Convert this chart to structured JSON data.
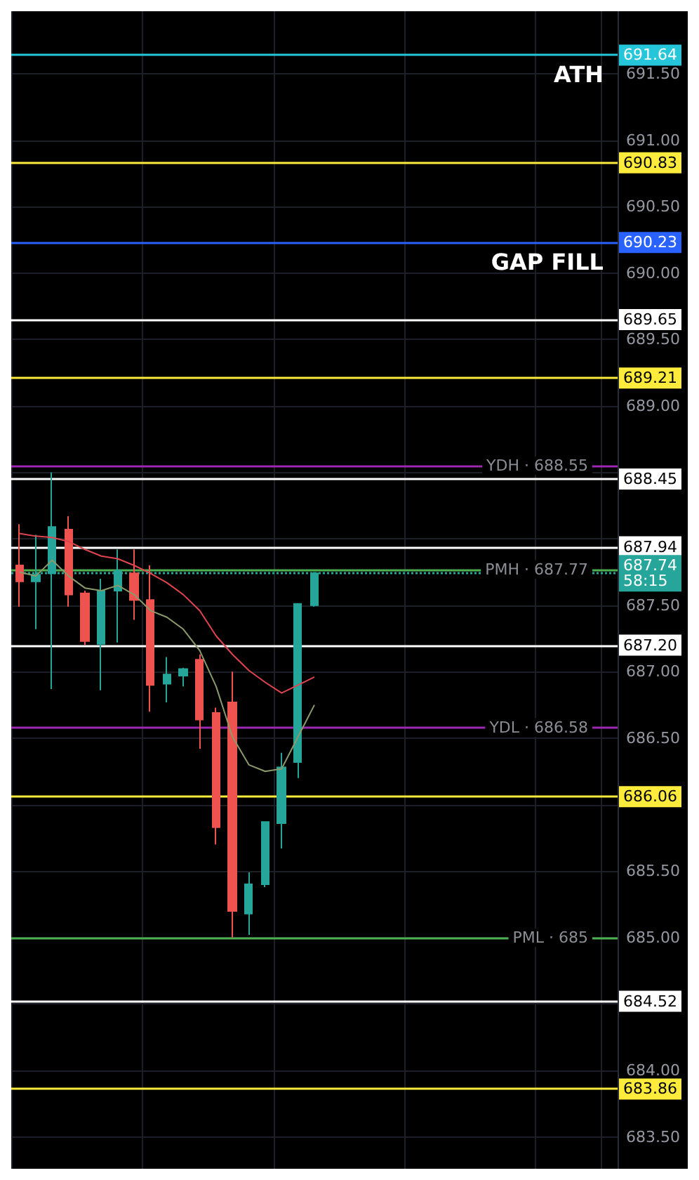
{
  "chart_data": {
    "type": "candlestick",
    "categories": [
      null,
      null,
      null,
      null,
      null,
      null,
      null,
      null,
      null,
      null,
      null,
      null,
      null,
      null,
      null,
      null,
      null,
      null,
      null,
      null,
      null,
      null,
      null,
      null,
      null,
      null,
      null,
      null,
      null,
      null,
      null,
      null,
      null,
      null,
      null,
      null,
      null
    ],
    "ohlc": [
      [
        687.8,
        688.11,
        687.49,
        687.68
      ],
      [
        687.68,
        688.03,
        687.32,
        687.73
      ],
      [
        687.74,
        688.5,
        686.87,
        688.09
      ],
      [
        688.07,
        688.17,
        687.49,
        687.58
      ],
      [
        687.59,
        687.61,
        687.2,
        687.23
      ],
      [
        687.21,
        687.7,
        686.86,
        687.61
      ],
      [
        687.61,
        687.92,
        687.22,
        687.76
      ],
      [
        687.74,
        687.92,
        687.39,
        687.54
      ],
      [
        687.54,
        687.8,
        686.7,
        686.9
      ],
      [
        686.91,
        687.11,
        686.77,
        686.98
      ],
      [
        686.97,
        687.03,
        686.89,
        687.02
      ],
      [
        687.09,
        687.13,
        686.42,
        686.64
      ],
      [
        686.69,
        686.73,
        685.7,
        685.83
      ],
      [
        686.77,
        687.0,
        685.0,
        685.2
      ],
      [
        685.18,
        685.49,
        685.02,
        685.4
      ],
      [
        685.4,
        685.87,
        685.38,
        685.87
      ],
      [
        685.86,
        686.39,
        685.67,
        686.28
      ],
      [
        686.32,
        687.51,
        686.2,
        687.51
      ],
      [
        687.5,
        687.75,
        687.49,
        687.74
      ],
      null,
      null,
      null,
      null,
      null,
      null,
      null,
      null,
      null,
      null,
      null,
      null,
      null,
      null,
      null,
      null,
      null,
      null
    ],
    "series": [
      {
        "type": "line",
        "color": "#e0454f",
        "values": [
          688.04,
          688.02,
          688.01,
          687.98,
          687.92,
          687.87,
          687.85,
          687.8,
          687.74,
          687.67,
          687.58,
          687.46,
          687.27,
          687.13,
          687.01,
          686.92,
          686.84,
          686.9,
          686.96,
          null,
          null,
          null,
          null,
          null,
          null,
          null,
          null,
          null,
          null,
          null,
          null,
          null,
          null,
          null,
          null,
          null,
          null
        ]
      },
      {
        "type": "line",
        "color": "#8a9a6a",
        "values": [
          687.75,
          687.72,
          687.84,
          687.72,
          687.63,
          687.61,
          687.65,
          687.58,
          687.46,
          687.41,
          687.32,
          687.16,
          686.89,
          686.51,
          686.3,
          686.25,
          686.27,
          686.51,
          686.75,
          null,
          null,
          null,
          null,
          null,
          null,
          null,
          null,
          null,
          null,
          null,
          null,
          null,
          null,
          null,
          null,
          null,
          null
        ]
      }
    ],
    "ylim": [
      683.26,
      691.97
    ],
    "yticks": [
      {
        "value": 683.5,
        "label": "683.50"
      },
      {
        "value": 684,
        "label": "684.00"
      },
      {
        "value": 684.5,
        "label": null
      },
      {
        "value": 685,
        "label": "685.00"
      },
      {
        "value": 685.5,
        "label": "685.50"
      },
      {
        "value": 686,
        "label": null
      },
      {
        "value": 686.5,
        "label": "686.50"
      },
      {
        "value": 687,
        "label": "687.00"
      },
      {
        "value": 687.5,
        "label": "687.50"
      },
      {
        "value": 688,
        "label": null
      },
      {
        "value": 688.5,
        "label": null
      },
      {
        "value": 689,
        "label": "689.00"
      },
      {
        "value": 689.5,
        "label": "689.50"
      },
      {
        "value": 690,
        "label": "690.00"
      },
      {
        "value": 690.5,
        "label": "690.50"
      },
      {
        "value": 691,
        "label": "691.00"
      },
      {
        "value": 691.5,
        "label": "691.50"
      }
    ],
    "tick_labels": "y",
    "grid": true,
    "marker": "none",
    "ref_lines": [
      {
        "axis": "y",
        "value": 691.64,
        "label": "691.64",
        "color": "#26c6da"
      },
      {
        "axis": "y",
        "value": 690.83,
        "label": "690.83",
        "color": "#ffeb3b"
      },
      {
        "axis": "y",
        "value": 690.23,
        "label": "690.23",
        "color": "#2962ff"
      },
      {
        "axis": "y",
        "value": 689.65,
        "label": "689.65",
        "color": "#ffffff"
      },
      {
        "axis": "y",
        "value": 689.21,
        "label": "689.21",
        "color": "#ffeb3b"
      },
      {
        "axis": "y",
        "value": 688.55,
        "label": null,
        "color": "#9c27b0"
      },
      {
        "axis": "y",
        "value": 688.45,
        "label": "688.45",
        "color": "#ffffff"
      },
      {
        "axis": "y",
        "value": 687.94,
        "label": "687.94",
        "color": "#ffffff"
      },
      {
        "axis": "y",
        "value": 687.77,
        "label": null,
        "color": "#4caf50"
      },
      {
        "axis": "y",
        "value": 687.74,
        "label": "687.74\n58:15",
        "color": "#26a69a",
        "line_style": "dotted"
      },
      {
        "axis": "y",
        "value": 687.2,
        "label": "687.20",
        "color": "#ffffff"
      },
      {
        "axis": "y",
        "value": 686.58,
        "label": null,
        "color": "#9c27b0"
      },
      {
        "axis": "y",
        "value": 686.06,
        "label": "686.06",
        "color": "#ffeb3b"
      },
      {
        "axis": "y",
        "value": 685,
        "label": null,
        "color": "#4caf50"
      },
      {
        "axis": "y",
        "value": 684.52,
        "label": "684.52",
        "color": "#ffffff"
      },
      {
        "axis": "y",
        "value": 683.86,
        "label": "683.86",
        "color": "#ffeb3b"
      }
    ],
    "annotations": [
      {
        "text": "ATH",
        "y": 691.64
      },
      {
        "text": "GAP FILL",
        "y": 690.23
      },
      {
        "text": "YDH · 688.55",
        "y": 688.55
      },
      {
        "text": "PMH · 687.77",
        "y": 687.77
      },
      {
        "text": "YDL · 686.58",
        "y": 686.58
      },
      {
        "text": "PML · 685",
        "y": 685
      }
    ]
  }
}
